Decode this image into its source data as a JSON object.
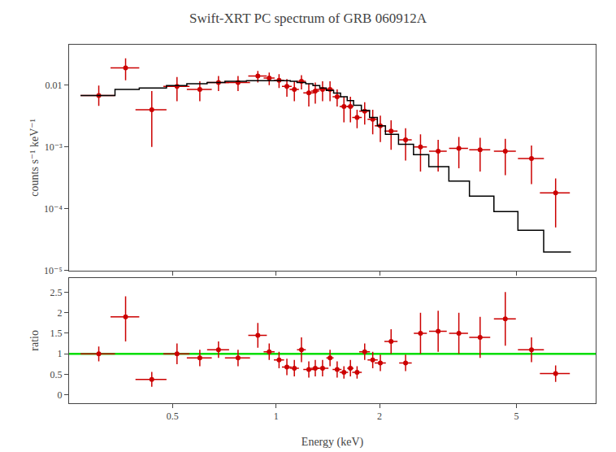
{
  "chart_data": [
    {
      "type": "errorbar",
      "title": "Swift-XRT PC spectrum of GRB 060912A",
      "ylabel": "counts s⁻¹ keV⁻¹",
      "log": true,
      "grid": false,
      "tick_labels": "y",
      "xlim": [
        0.25,
        8.5
      ],
      "xticks": [
        0.5,
        1,
        2,
        5
      ],
      "ylim": [
        1e-05,
        0.045
      ],
      "yticks": [
        {
          "value": 1e-05,
          "label": "10⁻⁵"
        },
        {
          "value": 0.0001,
          "label": "10⁻⁴"
        },
        {
          "value": 0.001,
          "label": "10⁻³"
        },
        0.01
      ],
      "series": [
        {
          "type": "errorbar",
          "color": "#cc0000",
          "x": [
            0.305,
            0.365,
            0.435,
            0.515,
            0.6,
            0.68,
            0.775,
            0.885,
            0.955,
            1.02,
            1.075,
            1.13,
            1.185,
            1.245,
            1.3,
            1.365,
            1.435,
            1.505,
            1.575,
            1.645,
            1.72,
            1.81,
            1.91,
            2.01,
            2.16,
            2.38,
            2.63,
            2.96,
            3.4,
            3.92,
            4.64,
            5.53,
            6.5
          ],
          "values": [
            0.0068,
            0.019,
            0.004,
            0.0095,
            0.0085,
            0.011,
            0.011,
            0.014,
            0.013,
            0.012,
            0.0095,
            0.0085,
            0.0115,
            0.0075,
            0.008,
            0.0085,
            0.0085,
            0.0065,
            0.0045,
            0.0045,
            0.003,
            0.0038,
            0.0028,
            0.0022,
            0.0018,
            0.0013,
            0.001,
            0.00085,
            0.00095,
            0.0009,
            0.00085,
            0.00065,
            0.00018
          ],
          "xerr_lo": [
            0.035,
            0.035,
            0.045,
            0.045,
            0.05,
            0.05,
            0.065,
            0.055,
            0.035,
            0.035,
            0.035,
            0.035,
            0.035,
            0.045,
            0.035,
            0.055,
            0.035,
            0.045,
            0.045,
            0.035,
            0.055,
            0.065,
            0.065,
            0.075,
            0.095,
            0.1,
            0.115,
            0.175,
            0.215,
            0.275,
            0.34,
            0.48,
            0.65
          ],
          "xerr_hi": [
            0.035,
            0.035,
            0.045,
            0.045,
            0.05,
            0.05,
            0.065,
            0.055,
            0.035,
            0.035,
            0.035,
            0.035,
            0.035,
            0.045,
            0.035,
            0.055,
            0.035,
            0.045,
            0.045,
            0.035,
            0.055,
            0.065,
            0.065,
            0.075,
            0.095,
            0.1,
            0.115,
            0.175,
            0.215,
            0.275,
            0.34,
            0.48,
            0.65
          ],
          "yerr_lo": [
            0.0022,
            0.007,
            0.003,
            0.004,
            0.003,
            0.003,
            0.003,
            0.003,
            0.003,
            0.003,
            0.003,
            0.003,
            0.003,
            0.003,
            0.003,
            0.003,
            0.003,
            0.002,
            0.002,
            0.002,
            0.001,
            0.0015,
            0.0012,
            0.001,
            0.0009,
            0.0007,
            0.0006,
            0.00045,
            0.0005,
            0.0005,
            0.0005,
            0.0004,
            0.00013
          ],
          "yerr_hi": [
            0.003,
            0.008,
            0.004,
            0.004,
            0.003,
            0.003,
            0.003,
            0.003,
            0.003,
            0.003,
            0.003,
            0.003,
            0.003,
            0.003,
            0.003,
            0.003,
            0.003,
            0.002,
            0.002,
            0.002,
            0.001,
            0.0015,
            0.0012,
            0.001,
            0.0009,
            0.0007,
            0.0006,
            0.00045,
            0.0005,
            0.0005,
            0.0005,
            0.0004,
            0.00013
          ]
        },
        {
          "type": "step",
          "color": "#000000",
          "bins": [
            0.27,
            0.34,
            0.4,
            0.48,
            0.55,
            0.63,
            0.71,
            0.82,
            0.92,
            0.99,
            1.04,
            1.1,
            1.15,
            1.22,
            1.28,
            1.34,
            1.4,
            1.47,
            1.54,
            1.61,
            1.68,
            1.77,
            1.87,
            1.97,
            2.08,
            2.27,
            2.51,
            2.78,
            3.18,
            3.65,
            4.3,
            5.05,
            6.0,
            7.2
          ],
          "values": [
            0.0068,
            0.0085,
            0.009,
            0.0098,
            0.0105,
            0.011,
            0.0115,
            0.0118,
            0.012,
            0.012,
            0.0118,
            0.0115,
            0.011,
            0.0105,
            0.0098,
            0.009,
            0.0082,
            0.0074,
            0.0065,
            0.0056,
            0.0047,
            0.0039,
            0.003,
            0.0022,
            0.0016,
            0.0011,
            0.00075,
            0.00048,
            0.00028,
            0.00016,
            9e-05,
            4.5e-05,
            2e-05
          ]
        }
      ]
    },
    {
      "type": "errorbar",
      "xlabel": "Energy (keV)",
      "ylabel": "ratio",
      "log": "x",
      "grid": false,
      "xlim": [
        0.25,
        8.5
      ],
      "xticks": [
        0.5,
        1,
        2,
        5
      ],
      "ylim": [
        -0.2,
        2.85
      ],
      "yticks": [
        0,
        0.5,
        1,
        1.5,
        2,
        2.5
      ],
      "series": [
        {
          "type": "errorbar",
          "color": "#cc0000",
          "x": [
            0.305,
            0.365,
            0.435,
            0.515,
            0.6,
            0.68,
            0.775,
            0.885,
            0.955,
            1.02,
            1.075,
            1.13,
            1.185,
            1.245,
            1.3,
            1.365,
            1.435,
            1.505,
            1.575,
            1.645,
            1.72,
            1.81,
            1.91,
            2.01,
            2.16,
            2.38,
            2.63,
            2.96,
            3.4,
            3.92,
            4.64,
            5.53,
            6.5
          ],
          "values": [
            1.0,
            1.9,
            0.38,
            1.0,
            0.9,
            1.1,
            0.9,
            1.45,
            1.05,
            0.85,
            0.68,
            0.65,
            1.1,
            0.62,
            0.65,
            0.65,
            0.9,
            0.62,
            0.55,
            0.65,
            0.55,
            1.05,
            0.85,
            0.78,
            1.3,
            0.78,
            1.5,
            1.55,
            1.5,
            1.4,
            1.85,
            1.1,
            0.52
          ],
          "xerr_lo": [
            0.035,
            0.035,
            0.045,
            0.045,
            0.05,
            0.05,
            0.065,
            0.055,
            0.035,
            0.035,
            0.035,
            0.035,
            0.035,
            0.045,
            0.035,
            0.055,
            0.035,
            0.045,
            0.045,
            0.035,
            0.055,
            0.065,
            0.065,
            0.075,
            0.095,
            0.1,
            0.115,
            0.175,
            0.215,
            0.275,
            0.34,
            0.48,
            0.65
          ],
          "xerr_hi": [
            0.035,
            0.035,
            0.045,
            0.045,
            0.05,
            0.05,
            0.065,
            0.055,
            0.035,
            0.035,
            0.035,
            0.035,
            0.035,
            0.045,
            0.035,
            0.055,
            0.035,
            0.045,
            0.045,
            0.035,
            0.055,
            0.065,
            0.065,
            0.075,
            0.095,
            0.1,
            0.115,
            0.175,
            0.215,
            0.275,
            0.34,
            0.48,
            0.65
          ],
          "yerr_lo": [
            0.18,
            0.6,
            0.18,
            0.25,
            0.2,
            0.2,
            0.2,
            0.3,
            0.2,
            0.2,
            0.2,
            0.2,
            0.3,
            0.2,
            0.2,
            0.2,
            0.2,
            0.2,
            0.15,
            0.2,
            0.15,
            0.2,
            0.2,
            0.2,
            0.3,
            0.2,
            0.5,
            0.5,
            0.5,
            0.5,
            0.65,
            0.3,
            0.2
          ],
          "yerr_hi": [
            0.18,
            0.5,
            0.18,
            0.25,
            0.2,
            0.2,
            0.2,
            0.3,
            0.2,
            0.2,
            0.2,
            0.2,
            0.3,
            0.2,
            0.2,
            0.2,
            0.2,
            0.2,
            0.15,
            0.2,
            0.15,
            0.2,
            0.2,
            0.2,
            0.3,
            0.2,
            0.5,
            0.5,
            0.5,
            0.5,
            0.65,
            0.3,
            0.2
          ]
        },
        {
          "type": "hline",
          "color": "#00dd00",
          "values": [
            1.0
          ]
        }
      ]
    }
  ]
}
